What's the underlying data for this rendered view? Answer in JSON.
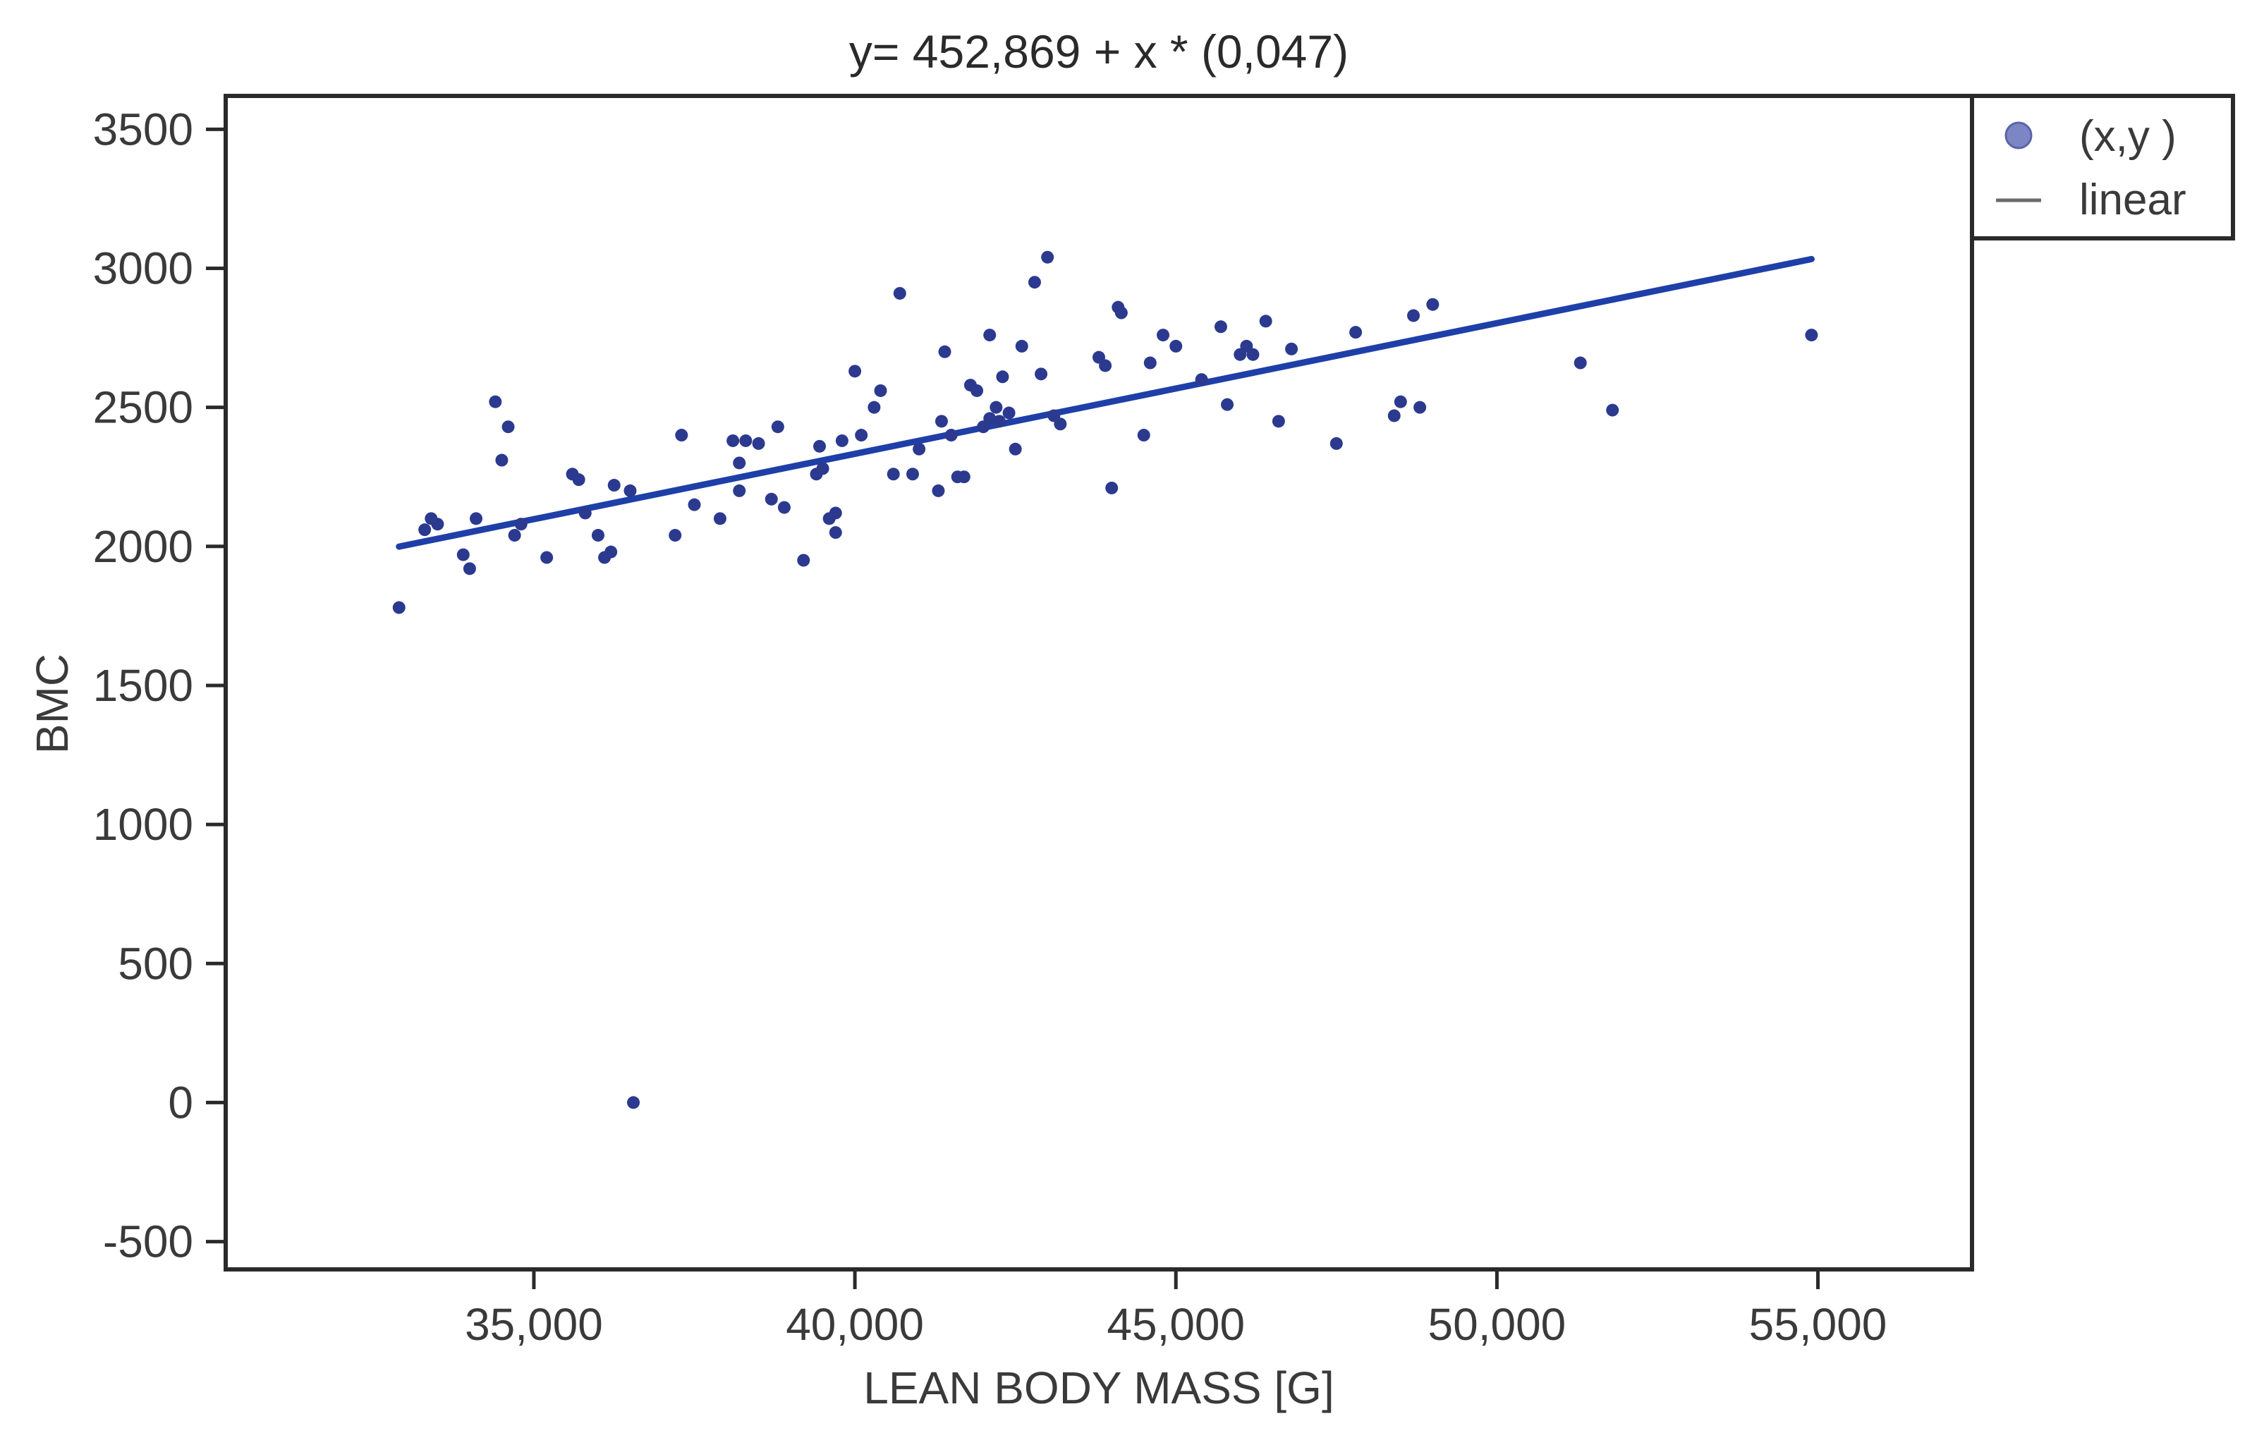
{
  "chart_data": {
    "type": "scatter",
    "title": "y= 452,869 + x * (0,047)",
    "xlabel": "LEAN BODY MASS [G]",
    "ylabel": "BMC",
    "xlim": [
      30200,
      57400
    ],
    "ylim": [
      -600,
      3620
    ],
    "x_ticks": [
      35000,
      40000,
      45000,
      50000,
      55000
    ],
    "x_tick_labels": [
      "35,000",
      "40,000",
      "45,000",
      "50,000",
      "55,000"
    ],
    "y_ticks": [
      -500,
      0,
      500,
      1000,
      1500,
      2000,
      2500,
      3000,
      3500
    ],
    "y_tick_labels": [
      "-500",
      "0",
      "500",
      "1000",
      "1500",
      "2000",
      "2500",
      "3000",
      "3500"
    ],
    "grid": false,
    "legend": {
      "position": "top-right-outside",
      "entries": [
        {
          "label": "(x,y )",
          "marker": "circle"
        },
        {
          "label": "linear",
          "marker": "line"
        }
      ]
    },
    "colors": {
      "points": "#2b3a8f",
      "line": "#1f3fa8",
      "legend_marker": "#7c86c4",
      "axis": "#2a2a2a"
    },
    "fit": {
      "intercept": 452.869,
      "slope": 0.047,
      "x_range": [
        32900,
        54900
      ]
    },
    "series": [
      {
        "name": "(x,y )",
        "points": [
          [
            32900,
            1780
          ],
          [
            33300,
            2060
          ],
          [
            33400,
            2100
          ],
          [
            33500,
            2080
          ],
          [
            33900,
            1970
          ],
          [
            34000,
            1920
          ],
          [
            34100,
            2100
          ],
          [
            34400,
            2520
          ],
          [
            34500,
            2310
          ],
          [
            34600,
            2430
          ],
          [
            34700,
            2040
          ],
          [
            34800,
            2080
          ],
          [
            35200,
            1960
          ],
          [
            35600,
            2260
          ],
          [
            35700,
            2240
          ],
          [
            35800,
            2120
          ],
          [
            36000,
            2040
          ],
          [
            36100,
            1960
          ],
          [
            36200,
            1980
          ],
          [
            36250,
            2220
          ],
          [
            36500,
            2200
          ],
          [
            36550,
            0
          ],
          [
            37200,
            2040
          ],
          [
            37300,
            2400
          ],
          [
            37500,
            2150
          ],
          [
            37900,
            2100
          ],
          [
            38100,
            2380
          ],
          [
            38200,
            2200
          ],
          [
            38200,
            2300
          ],
          [
            38300,
            2380
          ],
          [
            38500,
            2370
          ],
          [
            38700,
            2170
          ],
          [
            38800,
            2430
          ],
          [
            38900,
            2140
          ],
          [
            39200,
            1950
          ],
          [
            39400,
            2260
          ],
          [
            39450,
            2360
          ],
          [
            39500,
            2280
          ],
          [
            39600,
            2100
          ],
          [
            39700,
            2050
          ],
          [
            39700,
            2120
          ],
          [
            39800,
            2380
          ],
          [
            40000,
            2630
          ],
          [
            40100,
            2400
          ],
          [
            40300,
            2500
          ],
          [
            40400,
            2560
          ],
          [
            40600,
            2260
          ],
          [
            40700,
            2910
          ],
          [
            40900,
            2260
          ],
          [
            41000,
            2350
          ],
          [
            41300,
            2200
          ],
          [
            41350,
            2450
          ],
          [
            41400,
            2700
          ],
          [
            41500,
            2400
          ],
          [
            41600,
            2250
          ],
          [
            41700,
            2250
          ],
          [
            41800,
            2580
          ],
          [
            41900,
            2560
          ],
          [
            42000,
            2430
          ],
          [
            42100,
            2760
          ],
          [
            42100,
            2460
          ],
          [
            42200,
            2500
          ],
          [
            42250,
            2450
          ],
          [
            42300,
            2610
          ],
          [
            42400,
            2480
          ],
          [
            42500,
            2350
          ],
          [
            42600,
            2720
          ],
          [
            42800,
            2950
          ],
          [
            42900,
            2620
          ],
          [
            43000,
            3040
          ],
          [
            43100,
            2470
          ],
          [
            43200,
            2440
          ],
          [
            43800,
            2680
          ],
          [
            43900,
            2650
          ],
          [
            44000,
            2210
          ],
          [
            44100,
            2860
          ],
          [
            44150,
            2840
          ],
          [
            44500,
            2400
          ],
          [
            44600,
            2660
          ],
          [
            44800,
            2760
          ],
          [
            45000,
            2720
          ],
          [
            45400,
            2600
          ],
          [
            45700,
            2790
          ],
          [
            45800,
            2510
          ],
          [
            46000,
            2690
          ],
          [
            46100,
            2720
          ],
          [
            46200,
            2690
          ],
          [
            46400,
            2810
          ],
          [
            46600,
            2450
          ],
          [
            46800,
            2710
          ],
          [
            47500,
            2370
          ],
          [
            47800,
            2770
          ],
          [
            48400,
            2470
          ],
          [
            48500,
            2520
          ],
          [
            48700,
            2830
          ],
          [
            48800,
            2500
          ],
          [
            49000,
            2870
          ],
          [
            51300,
            2660
          ],
          [
            51800,
            2490
          ],
          [
            54900,
            2760
          ]
        ]
      }
    ]
  }
}
